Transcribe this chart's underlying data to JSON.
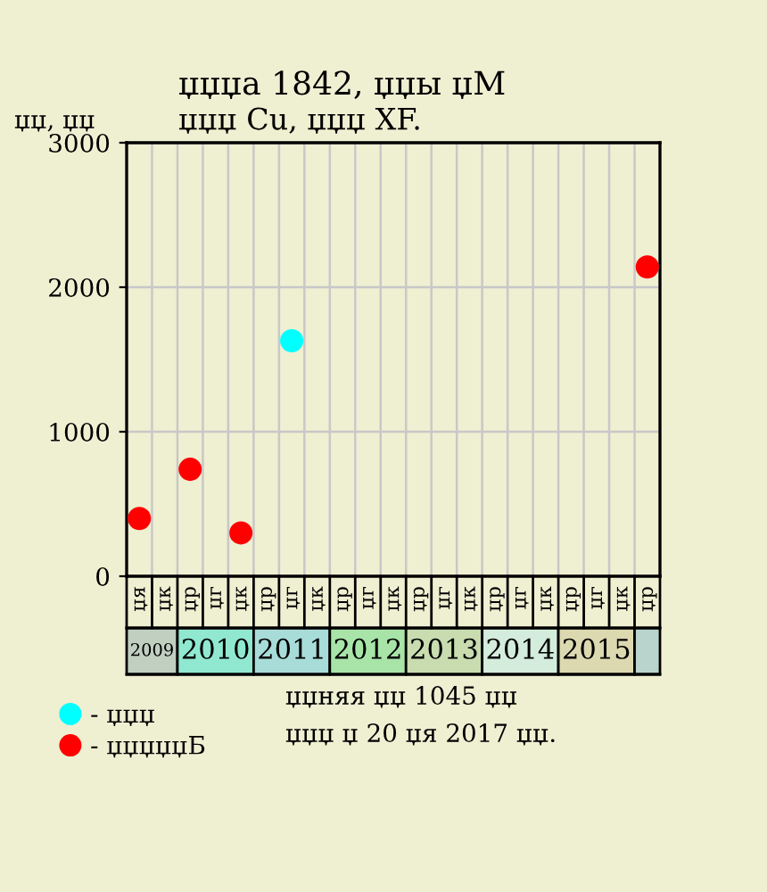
{
  "chart_data": {
    "type": "scatter",
    "title": "џџџа 1842, џџы џМ",
    "subtitle": "џџџ Cu, џџџ XF.",
    "ylabel": "џџ, џџ",
    "categories": [
      "џя",
      "џк",
      "џр",
      "џг",
      "џк",
      "џр",
      "џг",
      "џк",
      "џр",
      "џг",
      "џк",
      "џр",
      "џг",
      "џк",
      "џр",
      "џг",
      "џк",
      "џр",
      "џг",
      "џк",
      "џр"
    ],
    "series": [
      {
        "name": "- џџџ",
        "color": "#00ffff",
        "values": [
          null,
          null,
          null,
          null,
          null,
          null,
          1630,
          null,
          null,
          null,
          null,
          null,
          null,
          null,
          null,
          null,
          null,
          null,
          null,
          null,
          null
        ]
      },
      {
        "name": "- џџџџџБ",
        "color": "#ff0000",
        "values": [
          400,
          null,
          740,
          null,
          300,
          null,
          null,
          null,
          null,
          null,
          null,
          null,
          null,
          null,
          null,
          null,
          null,
          null,
          null,
          null,
          2140
        ]
      }
    ],
    "ylim": [
      0,
      3000
    ],
    "yticks": [
      0,
      1000,
      2000,
      3000
    ],
    "grid": true,
    "marker": "circle",
    "legend": "bottom left",
    "annotations": [
      "2009",
      "2010",
      "2011",
      "2012",
      "2013",
      "2014",
      "2015",
      "џџняя џџ 1045 џџ",
      "џџџ џ 20 џя 2017 џџ."
    ]
  }
}
